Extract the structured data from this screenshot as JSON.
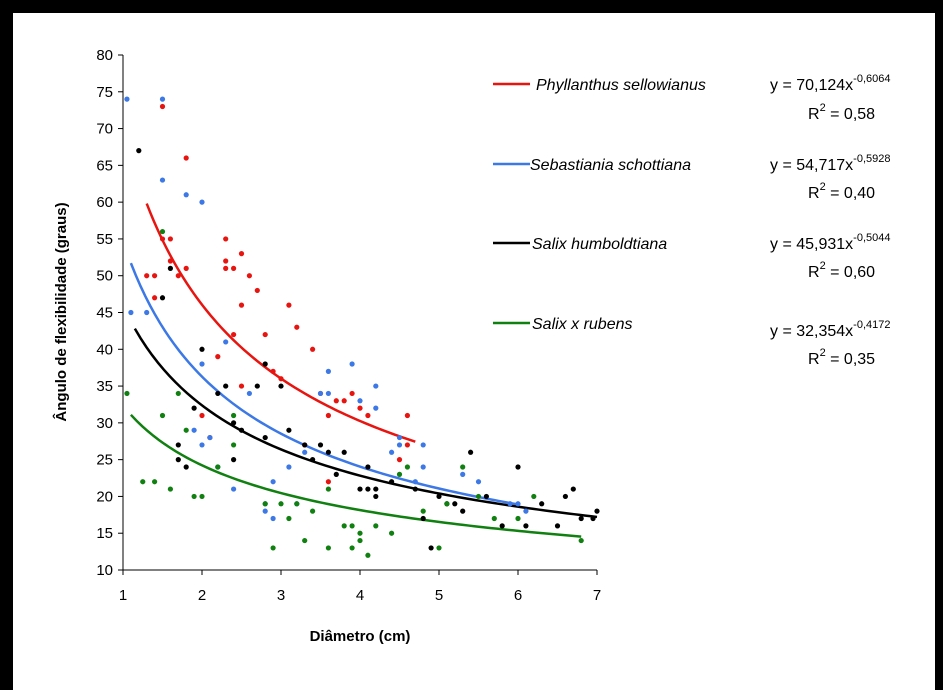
{
  "chart_data": {
    "type": "scatter",
    "xlabel": "Diâmetro (cm)",
    "ylabel": "Ângulo de flexibilidade (graus)",
    "xlim": [
      1,
      7
    ],
    "ylim": [
      10,
      80
    ],
    "xticks": [
      "1",
      "2",
      "3",
      "4",
      "5",
      "6",
      "7"
    ],
    "yticks": [
      "10",
      "15",
      "20",
      "25",
      "30",
      "35",
      "40",
      "45",
      "50",
      "55",
      "60",
      "65",
      "70",
      "75",
      "80"
    ],
    "grid": false,
    "legend_position": "right",
    "series": [
      {
        "name": "Phyllanthus sellowianus",
        "color": "#e8140f",
        "equation": "y = 70,124x",
        "exponent": "-0,6064",
        "r2_prefix": "R",
        "r2_power": "2",
        "r2_value": " = 0,58",
        "a": 70.124,
        "b": -0.6064,
        "fit_range": [
          1.3,
          4.7
        ],
        "points": [
          [
            1.3,
            50
          ],
          [
            1.4,
            50
          ],
          [
            1.4,
            47
          ],
          [
            1.5,
            73
          ],
          [
            1.5,
            55
          ],
          [
            1.6,
            55
          ],
          [
            1.6,
            52
          ],
          [
            1.7,
            50
          ],
          [
            1.8,
            66
          ],
          [
            1.8,
            51
          ],
          [
            2.0,
            31
          ],
          [
            2.1,
            28
          ],
          [
            2.2,
            39
          ],
          [
            2.3,
            55
          ],
          [
            2.3,
            52
          ],
          [
            2.3,
            51
          ],
          [
            2.4,
            51
          ],
          [
            2.4,
            42
          ],
          [
            2.5,
            53
          ],
          [
            2.5,
            46
          ],
          [
            2.5,
            35
          ],
          [
            2.6,
            50
          ],
          [
            2.7,
            48
          ],
          [
            2.8,
            42
          ],
          [
            2.9,
            37
          ],
          [
            3.0,
            36
          ],
          [
            3.1,
            46
          ],
          [
            3.2,
            43
          ],
          [
            3.3,
            27
          ],
          [
            3.4,
            40
          ],
          [
            3.5,
            34
          ],
          [
            3.6,
            31
          ],
          [
            3.6,
            22
          ],
          [
            3.7,
            33
          ],
          [
            3.8,
            33
          ],
          [
            3.9,
            34
          ],
          [
            4.0,
            32
          ],
          [
            4.1,
            31
          ],
          [
            4.5,
            25
          ],
          [
            4.6,
            31
          ],
          [
            4.6,
            27
          ]
        ]
      },
      {
        "name": "Sebastiania schottiana",
        "color": "#3c78e6",
        "equation": "y = 54,717x",
        "exponent": "-0,5928",
        "r2_prefix": "R",
        "r2_power": "2",
        "r2_value": " = 0,40",
        "a": 54.717,
        "b": -0.5928,
        "fit_range": [
          1.1,
          6.0
        ],
        "points": [
          [
            1.05,
            74
          ],
          [
            1.1,
            45
          ],
          [
            1.3,
            45
          ],
          [
            1.5,
            74
          ],
          [
            1.5,
            63
          ],
          [
            1.8,
            61
          ],
          [
            1.9,
            29
          ],
          [
            2.0,
            60
          ],
          [
            2.0,
            38
          ],
          [
            2.0,
            27
          ],
          [
            2.1,
            28
          ],
          [
            2.2,
            24
          ],
          [
            2.3,
            41
          ],
          [
            2.4,
            21
          ],
          [
            2.6,
            34
          ],
          [
            2.8,
            19
          ],
          [
            2.8,
            18
          ],
          [
            2.9,
            22
          ],
          [
            2.9,
            17
          ],
          [
            3.1,
            24
          ],
          [
            3.2,
            19
          ],
          [
            3.3,
            26
          ],
          [
            3.5,
            34
          ],
          [
            3.6,
            37
          ],
          [
            3.6,
            34
          ],
          [
            3.9,
            38
          ],
          [
            4.0,
            33
          ],
          [
            4.2,
            35
          ],
          [
            4.2,
            32
          ],
          [
            4.4,
            26
          ],
          [
            4.5,
            28
          ],
          [
            4.5,
            27
          ],
          [
            4.7,
            22
          ],
          [
            4.8,
            27
          ],
          [
            4.8,
            24
          ],
          [
            5.3,
            23
          ],
          [
            5.5,
            22
          ],
          [
            5.9,
            19
          ],
          [
            6.0,
            19
          ],
          [
            6.1,
            18
          ]
        ]
      },
      {
        "name": "Salix humboldtiana",
        "color": "#000000",
        "equation": "y = 45,931x",
        "exponent": "-0,5044",
        "r2_prefix": "R",
        "r2_power": "2",
        "r2_value": " = 0,60",
        "a": 45.931,
        "b": -0.5044,
        "fit_range": [
          1.15,
          7.0
        ],
        "points": [
          [
            1.2,
            67
          ],
          [
            1.5,
            47
          ],
          [
            1.6,
            51
          ],
          [
            1.7,
            27
          ],
          [
            1.7,
            25
          ],
          [
            1.8,
            24
          ],
          [
            1.9,
            32
          ],
          [
            2.0,
            40
          ],
          [
            2.2,
            34
          ],
          [
            2.3,
            35
          ],
          [
            2.4,
            30
          ],
          [
            2.4,
            25
          ],
          [
            2.5,
            29
          ],
          [
            2.7,
            35
          ],
          [
            2.8,
            28
          ],
          [
            2.8,
            38
          ],
          [
            3.0,
            35
          ],
          [
            3.1,
            29
          ],
          [
            3.3,
            27
          ],
          [
            3.4,
            25
          ],
          [
            3.5,
            27
          ],
          [
            3.6,
            26
          ],
          [
            3.7,
            23
          ],
          [
            3.8,
            26
          ],
          [
            4.0,
            21
          ],
          [
            4.1,
            24
          ],
          [
            4.1,
            21
          ],
          [
            4.2,
            20
          ],
          [
            4.2,
            21
          ],
          [
            4.4,
            22
          ],
          [
            4.7,
            21
          ],
          [
            4.8,
            17
          ],
          [
            4.9,
            13
          ],
          [
            5.0,
            20
          ],
          [
            5.1,
            19
          ],
          [
            5.2,
            19
          ],
          [
            5.3,
            18
          ],
          [
            5.4,
            26
          ],
          [
            5.6,
            20
          ],
          [
            5.8,
            16
          ],
          [
            6.0,
            24
          ],
          [
            6.1,
            16
          ],
          [
            6.3,
            19
          ],
          [
            6.5,
            16
          ],
          [
            6.6,
            20
          ],
          [
            6.7,
            21
          ],
          [
            6.8,
            17
          ],
          [
            6.95,
            17
          ],
          [
            7.0,
            18
          ]
        ]
      },
      {
        "name": "Salix x rubens",
        "color": "#108010",
        "equation": "y = 32,354x",
        "exponent": "-0,4172",
        "r2_prefix": "R",
        "r2_power": "2",
        "r2_value": " = 0,35",
        "a": 32.354,
        "b": -0.4172,
        "fit_range": [
          1.1,
          6.8
        ],
        "points": [
          [
            1.05,
            34
          ],
          [
            1.25,
            22
          ],
          [
            1.4,
            22
          ],
          [
            1.5,
            56
          ],
          [
            1.5,
            31
          ],
          [
            1.6,
            21
          ],
          [
            1.7,
            34
          ],
          [
            1.8,
            29
          ],
          [
            1.9,
            20
          ],
          [
            2.0,
            20
          ],
          [
            2.2,
            24
          ],
          [
            2.4,
            31
          ],
          [
            2.4,
            27
          ],
          [
            2.8,
            19
          ],
          [
            2.9,
            13
          ],
          [
            3.0,
            19
          ],
          [
            3.1,
            17
          ],
          [
            3.2,
            19
          ],
          [
            3.3,
            14
          ],
          [
            3.4,
            18
          ],
          [
            3.6,
            21
          ],
          [
            3.6,
            13
          ],
          [
            3.8,
            16
          ],
          [
            3.9,
            16
          ],
          [
            3.9,
            13
          ],
          [
            4.0,
            15
          ],
          [
            4.0,
            14
          ],
          [
            4.1,
            12
          ],
          [
            4.2,
            16
          ],
          [
            4.4,
            15
          ],
          [
            4.5,
            23
          ],
          [
            4.6,
            24
          ],
          [
            4.8,
            18
          ],
          [
            5.0,
            13
          ],
          [
            5.1,
            19
          ],
          [
            5.3,
            24
          ],
          [
            5.5,
            20
          ],
          [
            5.7,
            17
          ],
          [
            6.0,
            17
          ],
          [
            6.2,
            20
          ],
          [
            6.8,
            14
          ]
        ]
      }
    ]
  }
}
